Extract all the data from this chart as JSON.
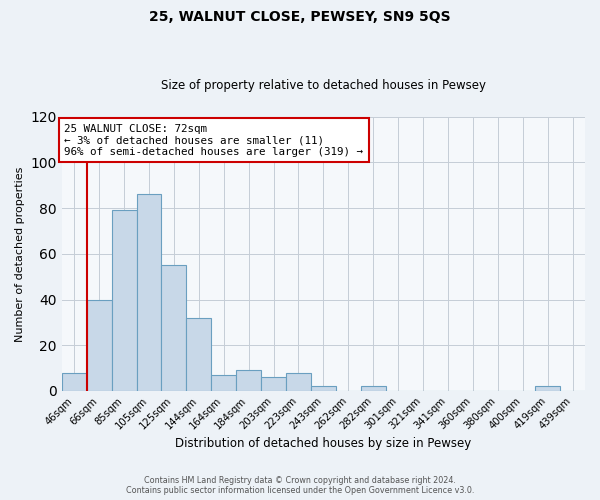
{
  "title": "25, WALNUT CLOSE, PEWSEY, SN9 5QS",
  "subtitle": "Size of property relative to detached houses in Pewsey",
  "xlabel": "Distribution of detached houses by size in Pewsey",
  "ylabel": "Number of detached properties",
  "bar_labels": [
    "46sqm",
    "66sqm",
    "85sqm",
    "105sqm",
    "125sqm",
    "144sqm",
    "164sqm",
    "184sqm",
    "203sqm",
    "223sqm",
    "243sqm",
    "262sqm",
    "282sqm",
    "301sqm",
    "321sqm",
    "341sqm",
    "360sqm",
    "380sqm",
    "400sqm",
    "419sqm",
    "439sqm"
  ],
  "bar_values": [
    8,
    40,
    79,
    86,
    55,
    32,
    7,
    9,
    6,
    8,
    2,
    0,
    2,
    0,
    0,
    0,
    0,
    0,
    0,
    2,
    0
  ],
  "bar_color": "#c8d8e8",
  "bar_edge_color": "#6a9fc0",
  "vline_x": 0.5,
  "vline_color": "#cc0000",
  "ylim": [
    0,
    120
  ],
  "yticks": [
    0,
    20,
    40,
    60,
    80,
    100,
    120
  ],
  "annotation_title": "25 WALNUT CLOSE: 72sqm",
  "annotation_line1": "← 3% of detached houses are smaller (11)",
  "annotation_line2": "96% of semi-detached houses are larger (319) →",
  "annotation_box_color": "#ffffff",
  "annotation_box_edge": "#cc0000",
  "footer1": "Contains HM Land Registry data © Crown copyright and database right 2024.",
  "footer2": "Contains public sector information licensed under the Open Government Licence v3.0.",
  "background_color": "#edf2f7",
  "plot_background": "#f5f8fb"
}
